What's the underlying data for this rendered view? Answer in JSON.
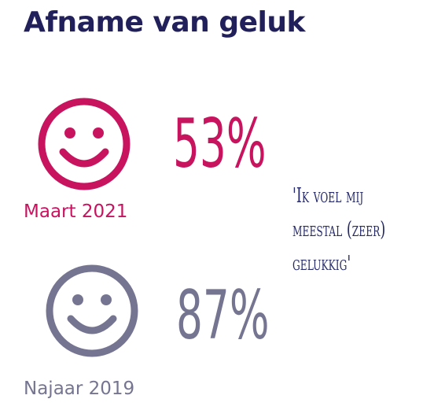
{
  "title": "Afname van geluk",
  "colors": {
    "title": "#22205a",
    "current": "#c8135f",
    "previous": "#757592",
    "quote": "#262a68"
  },
  "current": {
    "percentage": "53%",
    "period": "Maart 2021",
    "icon": "smiley-icon"
  },
  "previous": {
    "percentage": "87%",
    "period": "Najaar 2019",
    "icon": "smiley-icon"
  },
  "quote": {
    "lines": [
      "'Ik voel mij",
      "meestal (zeer)",
      "gelukkig'"
    ]
  }
}
